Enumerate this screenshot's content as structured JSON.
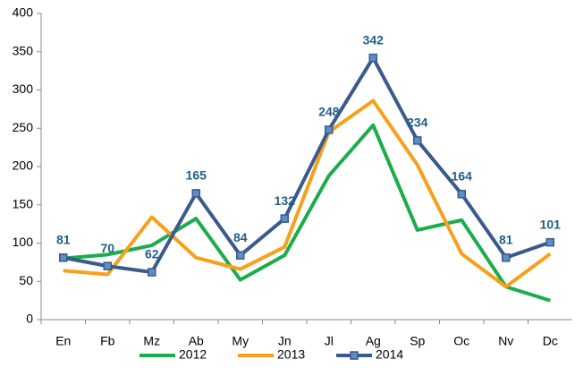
{
  "chart_data": {
    "type": "line",
    "categories": [
      "En",
      "Fb",
      "Mz",
      "Ab",
      "My",
      "Jn",
      "Jl",
      "Ag",
      "Sp",
      "Oc",
      "Nv",
      "Dc"
    ],
    "series": [
      {
        "name": "2012",
        "color": "#1aad4b",
        "values": [
          80,
          85,
          97,
          132,
          52,
          84,
          188,
          254,
          117,
          130,
          43,
          25
        ]
      },
      {
        "name": "2013",
        "color": "#f7a01c",
        "values": [
          64,
          59,
          134,
          81,
          66,
          95,
          245,
          286,
          202,
          86,
          43,
          86
        ]
      },
      {
        "name": "2014",
        "color": "#3a5a8c",
        "values": [
          81,
          70,
          62,
          165,
          84,
          132,
          248,
          342,
          234,
          164,
          81,
          101
        ],
        "markers": true,
        "data_labels": true
      }
    ],
    "ylim": [
      0,
      400
    ],
    "yticks": [
      0,
      50,
      100,
      150,
      200,
      250,
      300,
      350,
      400
    ],
    "grid": false,
    "legend": "bottom"
  }
}
